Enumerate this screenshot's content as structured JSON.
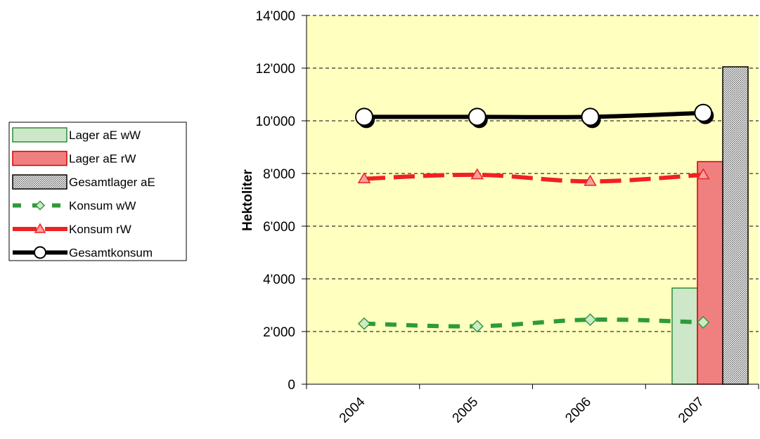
{
  "chart_data": {
    "type": "bar+line",
    "categories": [
      "2004",
      "2005",
      "2006",
      "2007"
    ],
    "ylabel": "Hektoliter",
    "xlabel": "",
    "title": "",
    "ylim": [
      0,
      14000
    ],
    "y_ticks": [
      0,
      2000,
      4000,
      6000,
      8000,
      10000,
      12000,
      14000
    ],
    "y_tick_labels": [
      "0",
      "2'000",
      "4'000",
      "6'000",
      "8'000",
      "10'000",
      "12'000",
      "14'000"
    ],
    "grid": "horizontal dashed",
    "plot_background": "#ffffc0",
    "legend_position": "left",
    "bars": [
      {
        "name": "Lager aE wW",
        "category": "2007",
        "value": 3650,
        "fill": "#cce8c8",
        "stroke": "#2e8b3a",
        "pattern": "solid"
      },
      {
        "name": "Lager aE rW",
        "category": "2007",
        "value": 8450,
        "fill": "#f08080",
        "stroke": "#d40000",
        "pattern": "solid"
      },
      {
        "name": "Gesamtlager aE",
        "category": "2007",
        "value": 12050,
        "fill": "#b8b8b8",
        "stroke": "#000000",
        "pattern": "hatched"
      }
    ],
    "lines": [
      {
        "name": "Konsum wW",
        "values": [
          2300,
          2200,
          2450,
          2350
        ],
        "color": "#2e9b3a",
        "marker": "diamond",
        "dash": "dashed"
      },
      {
        "name": "Konsum rW",
        "values": [
          7800,
          7950,
          7700,
          7950
        ],
        "color": "#ee2222",
        "marker": "triangle",
        "dash": "dashed"
      },
      {
        "name": "Gesamtkonsum",
        "values": [
          10150,
          10150,
          10150,
          10300
        ],
        "color": "#000000",
        "marker": "circle",
        "dash": "solid"
      }
    ]
  }
}
